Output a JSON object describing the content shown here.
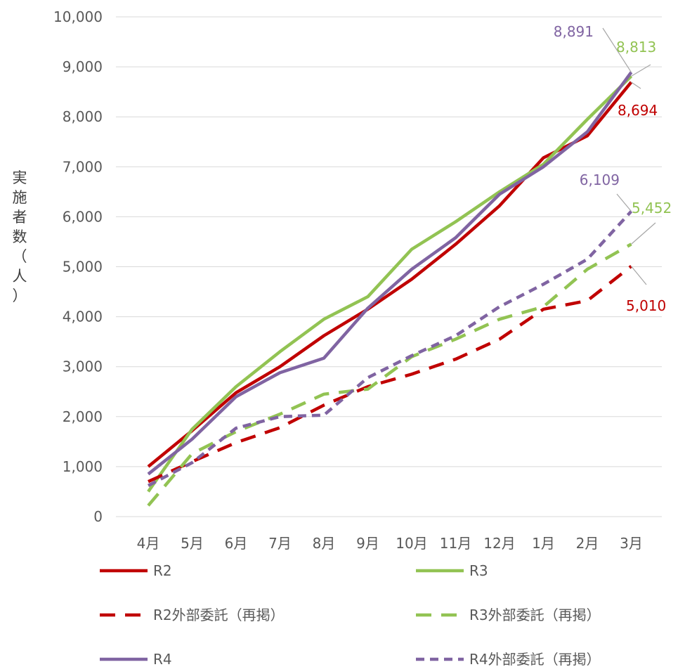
{
  "chart_data": {
    "type": "line",
    "ylabel": "実施者数（人）",
    "ylim": [
      0,
      10000
    ],
    "y_ticks": [
      "0",
      "1,000",
      "2,000",
      "3,000",
      "4,000",
      "5,000",
      "6,000",
      "7,000",
      "8,000",
      "9,000",
      "10,000"
    ],
    "categories": [
      "4月",
      "5月",
      "6月",
      "7月",
      "8月",
      "9月",
      "10月",
      "11月",
      "12月",
      "1月",
      "2月",
      "3月"
    ],
    "grid": true,
    "legend_position": "bottom",
    "series": [
      {
        "name": "R2",
        "color": "#C00000",
        "dash": "solid",
        "values": [
          1000,
          1720,
          2480,
          3000,
          3620,
          4150,
          4750,
          5450,
          6220,
          7180,
          7620,
          8694
        ]
      },
      {
        "name": "R3",
        "color": "#92C353",
        "dash": "solid",
        "values": [
          500,
          1750,
          2600,
          3300,
          3950,
          4400,
          5350,
          5900,
          6500,
          7050,
          7950,
          8813
        ]
      },
      {
        "name": "R2外部委託（再掲）",
        "color": "#C00000",
        "dash": "dashed",
        "values": [
          700,
          1100,
          1480,
          1780,
          2230,
          2600,
          2850,
          3150,
          3550,
          4150,
          4320,
          5010
        ]
      },
      {
        "name": "R3外部委託（再掲）",
        "color": "#92C353",
        "dash": "dashed",
        "values": [
          220,
          1260,
          1700,
          2050,
          2450,
          2550,
          3200,
          3550,
          3950,
          4200,
          4950,
          5452
        ]
      },
      {
        "name": "R4",
        "color": "#8064A2",
        "dash": "solid",
        "values": [
          850,
          1550,
          2400,
          2880,
          3170,
          4170,
          4950,
          5580,
          6450,
          7000,
          7700,
          8891
        ]
      },
      {
        "name": "R4外部委託（再掲）",
        "color": "#8064A2",
        "dash": "dotted",
        "values": [
          620,
          1080,
          1770,
          2000,
          2030,
          2780,
          3220,
          3620,
          4200,
          4650,
          5150,
          6109
        ]
      }
    ],
    "end_labels": [
      {
        "series": 4,
        "text": "8,891"
      },
      {
        "series": 1,
        "text": "8,813"
      },
      {
        "series": 0,
        "text": "8,694"
      },
      {
        "series": 5,
        "text": "6,109"
      },
      {
        "series": 3,
        "text": "5,452"
      },
      {
        "series": 2,
        "text": "5,010"
      }
    ]
  }
}
